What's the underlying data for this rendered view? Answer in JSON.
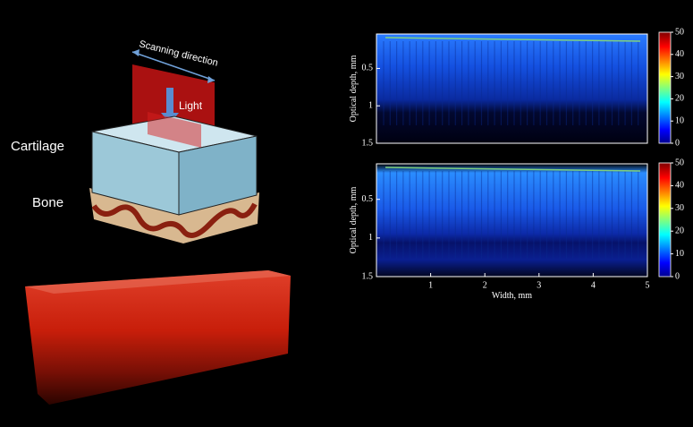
{
  "diagram": {
    "scanning_label": "Scanning direction",
    "light_label": "Light",
    "cartilage_label": "Cartilage",
    "bone_label": "Bone"
  },
  "panels": [
    {
      "y_label": "Optical depth, mm",
      "ylim": [
        0.04,
        1.5
      ],
      "yticks": [
        0.5,
        1,
        1.5
      ],
      "xlim": [
        0,
        5
      ],
      "colorbar_lim": [
        0,
        50
      ],
      "colorbar_ticks": [
        0,
        10,
        20,
        30,
        40,
        50
      ]
    },
    {
      "y_label": "Optical depth, mm",
      "ylim": [
        0.04,
        1.5
      ],
      "yticks": [
        0.5,
        1,
        1.5
      ],
      "xlim": [
        0,
        5
      ],
      "x_label": "Width, mm",
      "xticks": [
        1,
        2,
        3,
        4,
        5
      ],
      "colorbar_lim": [
        0,
        50
      ],
      "colorbar_ticks": [
        0,
        10,
        20,
        30,
        40,
        50
      ]
    }
  ]
}
